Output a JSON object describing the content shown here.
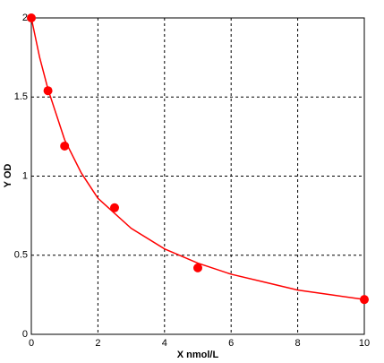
{
  "chart_data": {
    "type": "scatter",
    "x_label": "X nmol/L",
    "y_label": "Y OD",
    "x": [
      0,
      0.5,
      1,
      2.5,
      5,
      10
    ],
    "values": [
      2.0,
      1.54,
      1.19,
      0.8,
      0.42,
      0.22
    ],
    "color": "#ff0000",
    "curve": {
      "x": [
        0,
        0.25,
        0.5,
        1,
        1.5,
        2,
        3,
        4,
        5,
        6,
        7,
        8,
        9,
        10
      ],
      "values": [
        2.0,
        1.75,
        1.55,
        1.23,
        1.02,
        0.86,
        0.67,
        0.54,
        0.45,
        0.38,
        0.33,
        0.28,
        0.25,
        0.22
      ],
      "color": "#ff0000"
    },
    "xlim": [
      0,
      10
    ],
    "xticks": [
      0,
      2,
      4,
      6,
      8,
      10
    ],
    "ylim": [
      0,
      2
    ],
    "yticks": [
      0,
      0.5,
      1,
      1.5,
      2
    ],
    "grid": true
  }
}
